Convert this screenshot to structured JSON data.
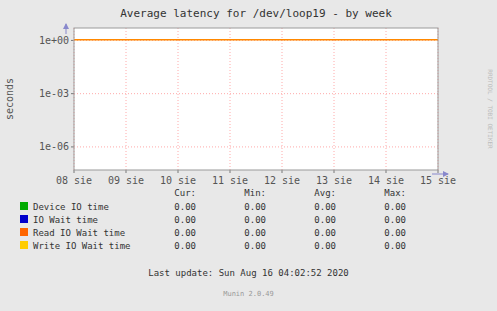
{
  "chart_data": {
    "type": "line",
    "title": "Average latency for /dev/loop19 - by week",
    "y_label": "seconds",
    "log": "y",
    "grid": true,
    "background_color": "#e8e8e8",
    "plot_background_color": "#ffffff",
    "grid_color": "#ffaaaa",
    "categories": [
      "08 sie",
      "09 sie",
      "10 sie",
      "11 sie",
      "12 sie",
      "13 sie",
      "14 sie",
      "15 sie"
    ],
    "ylim": [
      5e-08,
      5
    ],
    "yticks": [
      {
        "value": 1.0,
        "label": "1e+00"
      },
      {
        "value": 0.001,
        "label": "1e-03"
      },
      {
        "value": 1e-06,
        "label": "1e-06"
      }
    ],
    "reference_line": {
      "value": 1.1,
      "color": "#ff8800"
    },
    "stat_names": [
      "Cur:",
      "Min:",
      "Avg:",
      "Max:"
    ],
    "series": [
      {
        "name": "Device IO time",
        "color": "#00aa00",
        "stats": [
          0,
          0,
          0,
          0
        ],
        "stat_labels": [
          "0.00",
          "0.00",
          "0.00",
          "0.00"
        ]
      },
      {
        "name": "IO Wait time",
        "color": "#0000cc",
        "stats": [
          0,
          0,
          0,
          0
        ],
        "stat_labels": [
          "0.00",
          "0.00",
          "0.00",
          "0.00"
        ]
      },
      {
        "name": "Read IO Wait time",
        "color": "#ff6600",
        "stats": [
          0,
          0,
          0,
          0
        ],
        "stat_labels": [
          "0.00",
          "0.00",
          "0.00",
          "0.00"
        ]
      },
      {
        "name": "Write IO Wait time",
        "color": "#ffcc00",
        "stats": [
          0,
          0,
          0,
          0
        ],
        "stat_labels": [
          "0.00",
          "0.00",
          "0.00",
          "0.00"
        ]
      }
    ],
    "last_update": "Last update: Sun Aug 16 04:02:52 2020",
    "watermark": "RRDTOOL / TOBI OETIKER",
    "footer": "Munin 2.0.49"
  }
}
